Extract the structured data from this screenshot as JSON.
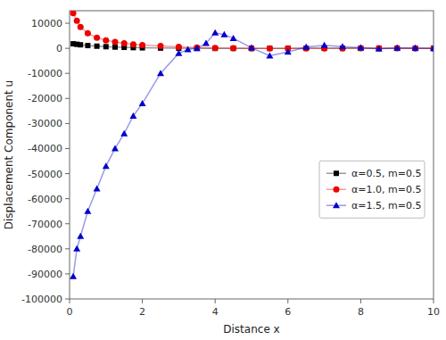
{
  "chart_data": {
    "type": "line",
    "xlabel": "Distance x",
    "ylabel": "Displacement Component u",
    "xlim": [
      0,
      10
    ],
    "ylim": [
      -100000,
      15000
    ],
    "xticks": [
      0,
      2,
      4,
      6,
      8,
      10
    ],
    "yticks": [
      -100000,
      -90000,
      -80000,
      -70000,
      -60000,
      -50000,
      -40000,
      -30000,
      -20000,
      -10000,
      0,
      10000
    ],
    "grid": false,
    "legend": "right",
    "series": [
      {
        "name": "α=0.5, m=0.5",
        "color": "#000000",
        "marker": "square",
        "x": [
          0.1,
          0.2,
          0.3,
          0.5,
          0.75,
          1.0,
          1.25,
          1.5,
          1.75,
          2.0,
          2.5,
          3.0,
          3.5,
          4.0,
          4.5,
          5.0,
          5.5,
          6.0,
          6.5,
          7.0,
          7.5,
          8.0,
          8.5,
          9.0,
          9.5,
          10.0
        ],
        "values": [
          1800,
          1600,
          1400,
          1100,
          850,
          650,
          500,
          380,
          280,
          200,
          100,
          30,
          0,
          -20,
          -30,
          -20,
          -10,
          0,
          5,
          5,
          3,
          2,
          1,
          0,
          0,
          0
        ]
      },
      {
        "name": "α=1.0, m=0.5",
        "color": "#ee0000",
        "marker": "circle",
        "x": [
          0.1,
          0.2,
          0.3,
          0.5,
          0.75,
          1.0,
          1.25,
          1.5,
          1.75,
          2.0,
          2.5,
          3.0,
          3.5,
          4.0,
          4.5,
          5.0,
          5.5,
          6.0,
          6.5,
          7.0,
          7.5,
          8.0,
          8.5,
          9.0,
          9.5,
          10.0
        ],
        "values": [
          14000,
          11000,
          8500,
          6000,
          4200,
          3200,
          2500,
          2000,
          1600,
          1300,
          900,
          600,
          350,
          150,
          50,
          0,
          -30,
          -50,
          -30,
          -10,
          0,
          5,
          3,
          2,
          1,
          0
        ]
      },
      {
        "name": "α=1.5, m=0.5",
        "color": "#0000cc",
        "marker": "triangle",
        "x": [
          0.1,
          0.2,
          0.3,
          0.5,
          0.75,
          1.0,
          1.25,
          1.5,
          1.75,
          2.0,
          2.5,
          3.0,
          3.25,
          3.5,
          3.75,
          4.0,
          4.25,
          4.5,
          5.0,
          5.5,
          6.0,
          6.5,
          7.0,
          7.5,
          8.0,
          8.5,
          9.0,
          9.5,
          10.0
        ],
        "values": [
          -91000,
          -80000,
          -75000,
          -65000,
          -56000,
          -47000,
          -40000,
          -34000,
          -27000,
          -22000,
          -10000,
          -2000,
          -500,
          0,
          2000,
          6200,
          5500,
          4000,
          200,
          -3000,
          -1500,
          500,
          1200,
          700,
          200,
          -200,
          100,
          100,
          0
        ]
      }
    ]
  }
}
